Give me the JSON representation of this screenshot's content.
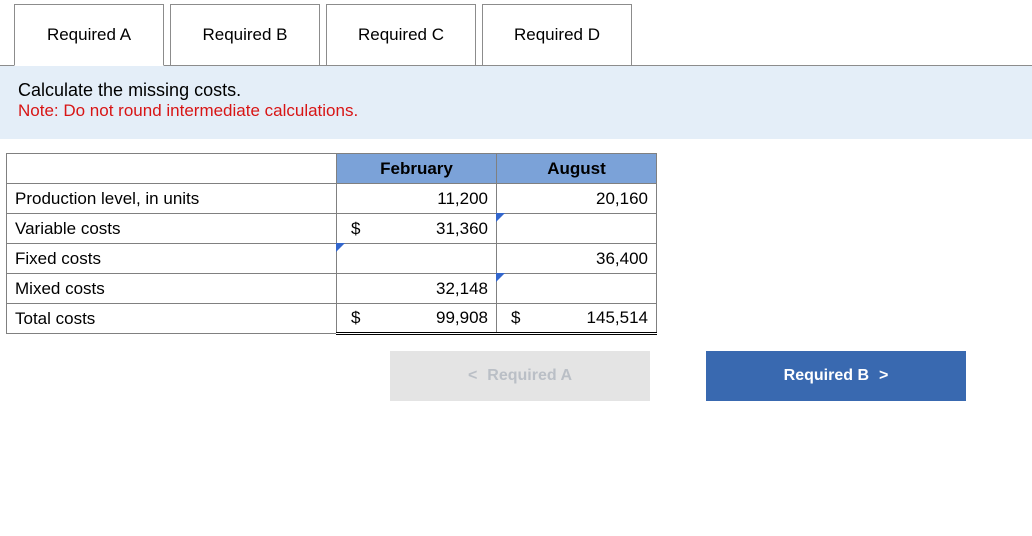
{
  "tabs": [
    {
      "label": "Required A",
      "active": true
    },
    {
      "label": "Required B",
      "active": false
    },
    {
      "label": "Required C",
      "active": false
    },
    {
      "label": "Required D",
      "active": false
    }
  ],
  "instruction": {
    "line1": "Calculate the missing costs.",
    "line2": "Note: Do not round intermediate calculations."
  },
  "table": {
    "columns": [
      "February",
      "August"
    ],
    "rows": [
      {
        "label": "Production level, in units",
        "feb": {
          "dollar": "",
          "value": "11,200",
          "input": false
        },
        "aug": {
          "dollar": "",
          "value": "20,160",
          "input": false
        }
      },
      {
        "label": "Variable costs",
        "feb": {
          "dollar": "$",
          "value": "31,360",
          "input": false
        },
        "aug": {
          "dollar": "",
          "value": "",
          "input": true
        }
      },
      {
        "label": "Fixed costs",
        "feb": {
          "dollar": "",
          "value": "",
          "input": true
        },
        "aug": {
          "dollar": "",
          "value": "36,400",
          "input": false
        }
      },
      {
        "label": "Mixed costs",
        "feb": {
          "dollar": "",
          "value": "32,148",
          "input": false
        },
        "aug": {
          "dollar": "",
          "value": "",
          "input": true
        }
      },
      {
        "label": "Total costs",
        "feb": {
          "dollar": "$",
          "value": "99,908",
          "input": false
        },
        "aug": {
          "dollar": "$",
          "value": "145,514",
          "input": false
        },
        "total": true
      }
    ]
  },
  "nav": {
    "prev": {
      "label": "Required A",
      "chevron": "<",
      "enabled": false
    },
    "next": {
      "label": "Required B",
      "chevron": ">",
      "enabled": true
    }
  },
  "colors": {
    "panel_bg": "#e4eef8",
    "header_bg": "#7ba2d8",
    "note_color": "#d81515",
    "primary_btn": "#3969b0",
    "disabled_btn": "#e4e4e4",
    "border": "#808080",
    "marker": "#3366cc"
  }
}
